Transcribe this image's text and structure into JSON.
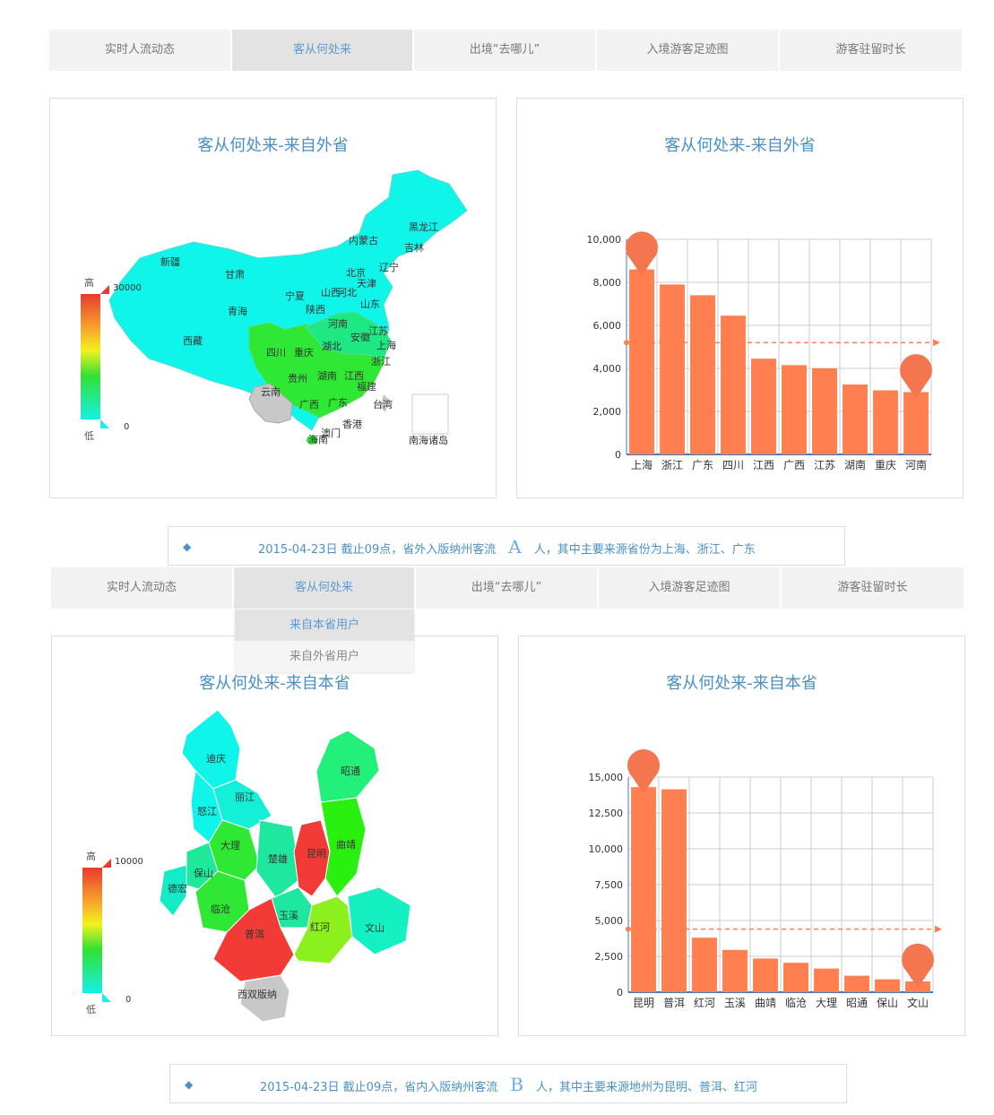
{
  "tabs_top": [
    "实时人流动态",
    "客从何处来",
    "出境“去哪儿”",
    "入境游客足迹图",
    "游客驻留时长"
  ],
  "tabs_bottom": [
    "实时人流动态",
    "客从何处来",
    "出境“去哪儿”",
    "入境游客足迹图",
    "游客驻留时长"
  ],
  "dropdown": [
    "来自本省用户",
    "来自外省用户"
  ],
  "colors": {
    "accent": "#4a90c8",
    "bar": "#ff7f50",
    "pin": "#f4764f"
  },
  "top": {
    "map_title": "客从何处来-来自外省",
    "legend": {
      "high_label": "高",
      "low_label": "低",
      "max": "30000",
      "min": "0"
    },
    "map_labels": [
      "黑龙江",
      "吉林",
      "辽宁",
      "内蒙古",
      "新疆",
      "甘肃",
      "宁夏",
      "北京",
      "天津",
      "河北",
      "山西",
      "山东",
      "陕西",
      "青海",
      "西藏",
      "河南",
      "江苏",
      "安徽",
      "上海",
      "湖北",
      "四川",
      "重庆",
      "浙江",
      "贵州",
      "湖南",
      "江西",
      "福建",
      "云南",
      "广西",
      "广东",
      "台湾",
      "香港",
      "澳门",
      "海南",
      "南海诸岛"
    ],
    "chart_title": "客从何处来-来自外省",
    "summary": {
      "prefix": "2015-04-23日 截止09点，省外入版纳州客流",
      "value": "A",
      "suffix": "人，其中主要来源省份为上海、浙江、广东"
    }
  },
  "bottom": {
    "map_title": "客从何处来-来自本省",
    "legend": {
      "high_label": "高",
      "low_label": "低",
      "max": "10000",
      "min": "0"
    },
    "map_labels": [
      "迪庆",
      "昭通",
      "丽江",
      "怒江",
      "大理",
      "昆明",
      "曲靖",
      "楚雄",
      "保山",
      "德宏",
      "临沧",
      "玉溪",
      "红河",
      "文山",
      "普洱",
      "西双版纳"
    ],
    "chart_title": "客从何处来-来自本省",
    "summary": {
      "prefix": "2015-04-23日 截止09点，省内入版纳州客流",
      "value": "B",
      "suffix": "人，其中主要来源地州为昆明、普洱、红河"
    }
  },
  "chart_data": [
    {
      "type": "bar",
      "title": "客从何处来-来自外省",
      "categories": [
        "上海",
        "浙江",
        "广东",
        "四川",
        "江西",
        "广西",
        "江苏",
        "湖南",
        "重庆",
        "河南"
      ],
      "values": [
        8600,
        7900,
        7400,
        6450,
        4450,
        4150,
        4000,
        3250,
        2980,
        2900
      ],
      "ylim": [
        0,
        10000
      ],
      "yticks": [
        "0",
        "2,000",
        "4,000",
        "6,000",
        "8,000",
        "10,000"
      ],
      "average": 5200,
      "grid": true
    },
    {
      "type": "bar",
      "title": "客从何处来-来自本省",
      "categories": [
        "昆明",
        "普洱",
        "红河",
        "玉溪",
        "曲靖",
        "临沧",
        "大理",
        "昭通",
        "保山",
        "文山"
      ],
      "values": [
        14300,
        14150,
        3800,
        2950,
        2350,
        2050,
        1650,
        1150,
        900,
        750
      ],
      "ylim": [
        0,
        15000
      ],
      "yticks": [
        "0",
        "2,500",
        "5,000",
        "7,500",
        "10,000",
        "12,500",
        "15,000"
      ],
      "average": 4400,
      "grid": true
    }
  ]
}
